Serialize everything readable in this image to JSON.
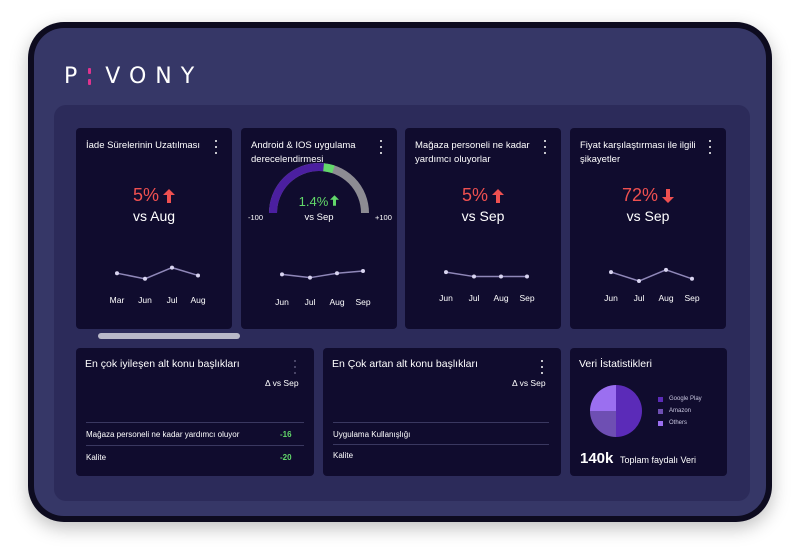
{
  "brand": {
    "logo_left": "P",
    "logo_right": "VONY"
  },
  "colors": {
    "accent_red": "#ef5050",
    "accent_green": "#62d86a",
    "gauge_purple": "#4b1fa0",
    "gauge_grey": "#8d8c93"
  },
  "kpis": [
    {
      "title": "İade Sürelerinin Uzatılması",
      "value": "5%",
      "trend": "up",
      "trend_icon": "arrow-up-icon",
      "compare": "vs Aug",
      "months": [
        "Mar",
        "Jun",
        "Jul",
        "Aug"
      ],
      "points": [
        3,
        2,
        4,
        2.6
      ]
    },
    {
      "title": "Android & IOS uygulama derecelendirmesi",
      "value": "1.4%",
      "trend": "up",
      "trend_icon": "arrow-up-icon",
      "compare": "vs Sep",
      "gauge_min": "-100",
      "gauge_max": "+100",
      "gauge_fill": 0.57,
      "months": [
        "Jun",
        "Jul",
        "Aug",
        "Sep"
      ],
      "points": [
        2.8,
        2.2,
        3.0,
        3.4
      ]
    },
    {
      "title": "Mağaza personeli ne kadar yardımcı oluyorlar",
      "value": "5%",
      "trend": "up",
      "trend_icon": "arrow-up-icon",
      "compare": "vs Sep",
      "months": [
        "Jun",
        "Jul",
        "Aug",
        "Sep"
      ],
      "points": [
        3.2,
        2.4,
        2.4,
        2.4
      ]
    },
    {
      "title": "Fiyat karşılaştırması ile ilgili şikayetler",
      "value": "72%",
      "trend": "down",
      "trend_icon": "arrow-down-icon",
      "compare": "vs Sep",
      "months": [
        "Jun",
        "Jul",
        "Aug",
        "Sep"
      ],
      "points": [
        3.2,
        1.6,
        3.6,
        2.0
      ]
    }
  ],
  "improving": {
    "title": "En çok iyileşen alt konu başlıkları",
    "delta_label": "Δ vs Sep",
    "rows": [
      {
        "label": "Mağaza personeli ne kadar yardımcı oluyor",
        "value": "-16"
      },
      {
        "label": "Kalite",
        "value": "-20"
      }
    ]
  },
  "rising": {
    "title": "En Çok artan alt konu başlıkları",
    "delta_label": "Δ vs Sep",
    "rows": [
      {
        "label": "Uygulama Kullanışlığı"
      },
      {
        "label": "Kalite"
      }
    ]
  },
  "stats": {
    "title": "Veri İstatistikleri",
    "pie": [
      {
        "name": "Google Play",
        "value": 50,
        "color": "#5b2bb8"
      },
      {
        "name": "Amazon",
        "value": 25,
        "color": "#6e4fb3"
      },
      {
        "name": "Others",
        "value": 25,
        "color": "#9b6ff0"
      }
    ],
    "total": "140k",
    "total_label": "Toplam faydalı Veri"
  }
}
